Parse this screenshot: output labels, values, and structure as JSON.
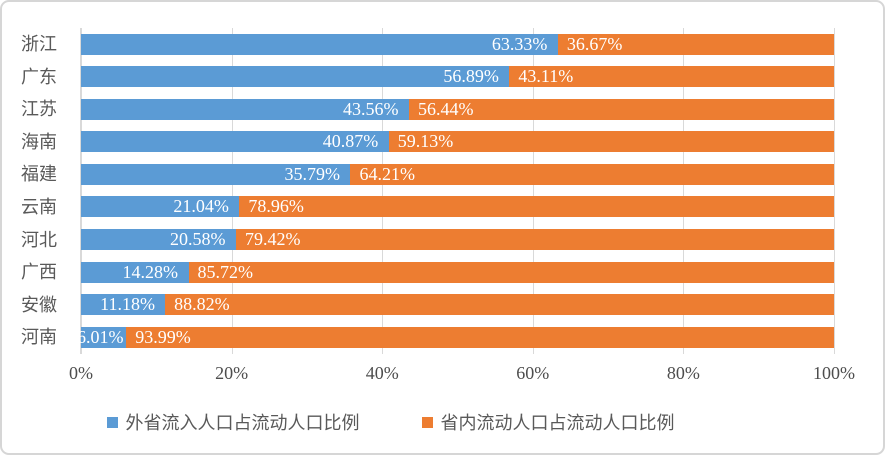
{
  "chart": {
    "background": "#FFFFFF",
    "border_color": "#D6D6D6",
    "grid_color": "#D9D9D9",
    "axis_text_color": "#4D4D4D",
    "category_text_color": "#595959",
    "value_label_color": "#FFFFFF"
  },
  "chart_data": {
    "type": "bar",
    "orientation": "horizontal",
    "stacked": true,
    "title": "",
    "xlabel": "",
    "ylabel": "",
    "xlim": [
      0,
      100
    ],
    "grid": true,
    "legend_position": "bottom",
    "categories": [
      "浙江",
      "广东",
      "江苏",
      "海南",
      "福建",
      "云南",
      "河北",
      "广西",
      "安徽",
      "河南"
    ],
    "series": [
      {
        "name": "外省流入人口占流动人口比例",
        "color": "#5B9BD5",
        "values": [
          63.33,
          56.89,
          43.56,
          40.87,
          35.79,
          21.04,
          20.58,
          14.28,
          11.18,
          6.01
        ],
        "labels": [
          "63.33%",
          "56.89%",
          "43.56%",
          "40.87%",
          "35.79%",
          "21.04%",
          "20.58%",
          "14.28%",
          "11.18%",
          "6.01%"
        ]
      },
      {
        "name": "省内流动人口占流动人口比例",
        "color": "#ED7D31",
        "values": [
          36.67,
          43.11,
          56.44,
          59.13,
          64.21,
          78.96,
          79.42,
          85.72,
          88.82,
          93.99
        ],
        "labels": [
          "36.67%",
          "43.11%",
          "56.44%",
          "59.13%",
          "64.21%",
          "78.96%",
          "79.42%",
          "85.72%",
          "88.82%",
          "93.99%"
        ]
      }
    ],
    "x_ticks": [
      {
        "value": 0,
        "label": "0%"
      },
      {
        "value": 20,
        "label": "20%"
      },
      {
        "value": 40,
        "label": "40%"
      },
      {
        "value": 60,
        "label": "60%"
      },
      {
        "value": 80,
        "label": "80%"
      },
      {
        "value": 100,
        "label": "100%"
      }
    ]
  }
}
